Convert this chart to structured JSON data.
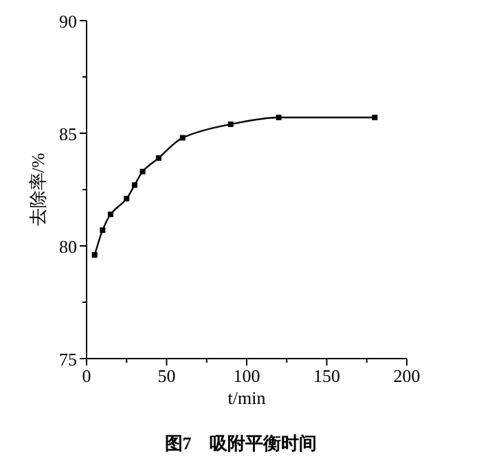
{
  "chart_data": {
    "type": "line",
    "title": "图7　吸附平衡时间",
    "xlabel": "t/min",
    "ylabel": "去除率/%",
    "x": [
      5,
      10,
      15,
      25,
      30,
      35,
      45,
      60,
      90,
      120,
      180
    ],
    "series": [
      {
        "color": "#000000",
        "values": [
          79.6,
          80.7,
          81.4,
          82.1,
          82.7,
          83.3,
          83.9,
          84.8,
          85.4,
          85.7,
          85.7
        ]
      }
    ],
    "xlim": [
      0,
      200
    ],
    "ylim": [
      75,
      90
    ],
    "xticks": [
      0,
      {
        "value": 25,
        "label": null
      },
      50,
      {
        "value": 75,
        "label": null
      },
      100,
      {
        "value": 125,
        "label": null
      },
      150,
      {
        "value": 175,
        "label": null
      },
      200
    ],
    "yticks": [
      75,
      {
        "value": 77.5,
        "label": null
      },
      80,
      {
        "value": 82.5,
        "label": null
      },
      85,
      {
        "value": 87.5,
        "label": null
      },
      90
    ],
    "marker": "square",
    "line_style": "solid",
    "grid": false
  }
}
